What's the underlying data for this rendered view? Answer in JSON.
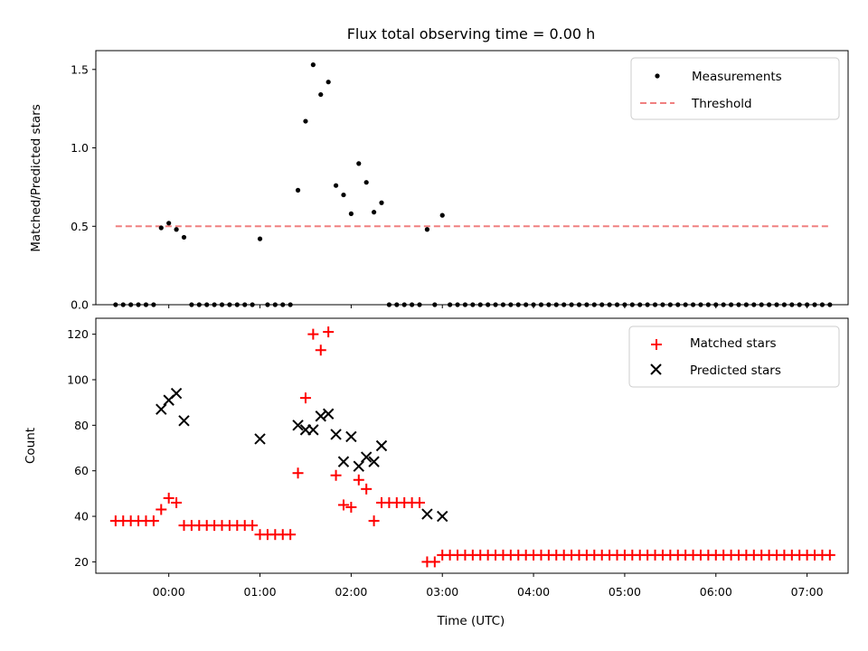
{
  "chart_data": [
    {
      "type": "scatter",
      "title": "Flux total observing time = 0.00 h",
      "xlabel": "",
      "ylabel": "Matched/Predicted stars",
      "ylim": [
        0,
        1.62
      ],
      "yticks": [
        "0.0",
        "0.5",
        "1.0",
        "1.5"
      ],
      "ytick_values": [
        0,
        0.5,
        1.0,
        1.5
      ],
      "legend": {
        "position": "top-right",
        "entries": [
          "Measurements",
          "Threshold"
        ]
      },
      "threshold": {
        "name": "Threshold",
        "y": 0.5,
        "x_start": "-00:35",
        "x_end": "07:15",
        "color": "#f08080"
      },
      "series": [
        {
          "name": "Measurements",
          "color": "#000000",
          "points": [
            [
              "-00:35",
              0
            ],
            [
              "-00:30",
              0
            ],
            [
              "-00:25",
              0
            ],
            [
              "-00:20",
              0
            ],
            [
              "-00:15",
              0
            ],
            [
              "-00:10",
              0
            ],
            [
              "-00:05",
              0.49
            ],
            [
              "00:00",
              0.52
            ],
            [
              "00:05",
              0.48
            ],
            [
              "00:10",
              0.43
            ],
            [
              "00:15",
              0
            ],
            [
              "00:20",
              0
            ],
            [
              "00:25",
              0
            ],
            [
              "00:30",
              0
            ],
            [
              "00:35",
              0
            ],
            [
              "00:40",
              0
            ],
            [
              "00:45",
              0
            ],
            [
              "00:50",
              0
            ],
            [
              "00:55",
              0
            ],
            [
              "01:00",
              0.42
            ],
            [
              "01:05",
              0
            ],
            [
              "01:10",
              0
            ],
            [
              "01:15",
              0
            ],
            [
              "01:20",
              0
            ],
            [
              "01:25",
              0.73
            ],
            [
              "01:30",
              1.17
            ],
            [
              "01:35",
              1.53
            ],
            [
              "01:40",
              1.34
            ],
            [
              "01:45",
              1.42
            ],
            [
              "01:50",
              0.76
            ],
            [
              "01:55",
              0.7
            ],
            [
              "02:00",
              0.58
            ],
            [
              "02:05",
              0.9
            ],
            [
              "02:10",
              0.78
            ],
            [
              "02:15",
              0.59
            ],
            [
              "02:20",
              0.65
            ],
            [
              "02:25",
              0
            ],
            [
              "02:30",
              0
            ],
            [
              "02:35",
              0
            ],
            [
              "02:40",
              0
            ],
            [
              "02:45",
              0
            ],
            [
              "02:50",
              0.48
            ],
            [
              "02:55",
              0
            ],
            [
              "03:00",
              0.57
            ],
            [
              "03:05",
              0
            ],
            [
              "03:10",
              0
            ],
            [
              "03:15",
              0
            ],
            [
              "03:20",
              0
            ],
            [
              "03:25",
              0
            ],
            [
              "03:30",
              0
            ],
            [
              "03:35",
              0
            ],
            [
              "03:40",
              0
            ],
            [
              "03:45",
              0
            ],
            [
              "03:50",
              0
            ],
            [
              "03:55",
              0
            ],
            [
              "04:00",
              0
            ],
            [
              "04:05",
              0
            ],
            [
              "04:10",
              0
            ],
            [
              "04:15",
              0
            ],
            [
              "04:20",
              0
            ],
            [
              "04:25",
              0
            ],
            [
              "04:30",
              0
            ],
            [
              "04:35",
              0
            ],
            [
              "04:40",
              0
            ],
            [
              "04:45",
              0
            ],
            [
              "04:50",
              0
            ],
            [
              "04:55",
              0
            ],
            [
              "05:00",
              0
            ],
            [
              "05:05",
              0
            ],
            [
              "05:10",
              0
            ],
            [
              "05:15",
              0
            ],
            [
              "05:20",
              0
            ],
            [
              "05:25",
              0
            ],
            [
              "05:30",
              0
            ],
            [
              "05:35",
              0
            ],
            [
              "05:40",
              0
            ],
            [
              "05:45",
              0
            ],
            [
              "05:50",
              0
            ],
            [
              "05:55",
              0
            ],
            [
              "06:00",
              0
            ],
            [
              "06:05",
              0
            ],
            [
              "06:10",
              0
            ],
            [
              "06:15",
              0
            ],
            [
              "06:20",
              0
            ],
            [
              "06:25",
              0
            ],
            [
              "06:30",
              0
            ],
            [
              "06:35",
              0
            ],
            [
              "06:40",
              0
            ],
            [
              "06:45",
              0
            ],
            [
              "06:50",
              0
            ],
            [
              "06:55",
              0
            ],
            [
              "07:00",
              0
            ],
            [
              "07:05",
              0
            ],
            [
              "07:10",
              0
            ],
            [
              "07:15",
              0
            ]
          ]
        }
      ]
    },
    {
      "type": "scatter",
      "title": "",
      "xlabel": "Time (UTC)",
      "ylabel": "Count",
      "ylim": [
        15,
        127
      ],
      "yticks": [
        "20",
        "40",
        "60",
        "80",
        "100",
        "120"
      ],
      "ytick_values": [
        20,
        40,
        60,
        80,
        100,
        120
      ],
      "xlim": [
        "-00:48",
        "07:27"
      ],
      "xticks": [
        "00:00",
        "01:00",
        "02:00",
        "03:00",
        "04:00",
        "05:00",
        "06:00",
        "07:00"
      ],
      "legend": {
        "position": "top-right",
        "entries": [
          "Matched stars",
          "Predicted stars"
        ]
      },
      "series": [
        {
          "name": "Matched stars",
          "color": "#ff0000",
          "marker": "plus",
          "points": [
            [
              "-00:35",
              38
            ],
            [
              "-00:30",
              38
            ],
            [
              "-00:25",
              38
            ],
            [
              "-00:20",
              38
            ],
            [
              "-00:15",
              38
            ],
            [
              "-00:10",
              38
            ],
            [
              "-00:05",
              43
            ],
            [
              "00:00",
              48
            ],
            [
              "00:05",
              46
            ],
            [
              "00:10",
              36
            ],
            [
              "00:15",
              36
            ],
            [
              "00:20",
              36
            ],
            [
              "00:25",
              36
            ],
            [
              "00:30",
              36
            ],
            [
              "00:35",
              36
            ],
            [
              "00:40",
              36
            ],
            [
              "00:45",
              36
            ],
            [
              "00:50",
              36
            ],
            [
              "00:55",
              36
            ],
            [
              "01:00",
              32
            ],
            [
              "01:05",
              32
            ],
            [
              "01:10",
              32
            ],
            [
              "01:15",
              32
            ],
            [
              "01:20",
              32
            ],
            [
              "01:25",
              59
            ],
            [
              "01:30",
              92
            ],
            [
              "01:35",
              120
            ],
            [
              "01:40",
              113
            ],
            [
              "01:45",
              121
            ],
            [
              "01:50",
              58
            ],
            [
              "01:55",
              45
            ],
            [
              "02:00",
              44
            ],
            [
              "02:05",
              56
            ],
            [
              "02:10",
              52
            ],
            [
              "02:15",
              38
            ],
            [
              "02:20",
              46
            ],
            [
              "02:25",
              46
            ],
            [
              "02:30",
              46
            ],
            [
              "02:35",
              46
            ],
            [
              "02:40",
              46
            ],
            [
              "02:45",
              46
            ],
            [
              "02:50",
              20
            ],
            [
              "02:55",
              20
            ],
            [
              "03:00",
              23
            ],
            [
              "03:05",
              23
            ],
            [
              "03:10",
              23
            ],
            [
              "03:15",
              23
            ],
            [
              "03:20",
              23
            ],
            [
              "03:25",
              23
            ],
            [
              "03:30",
              23
            ],
            [
              "03:35",
              23
            ],
            [
              "03:40",
              23
            ],
            [
              "03:45",
              23
            ],
            [
              "03:50",
              23
            ],
            [
              "03:55",
              23
            ],
            [
              "04:00",
              23
            ],
            [
              "04:05",
              23
            ],
            [
              "04:10",
              23
            ],
            [
              "04:15",
              23
            ],
            [
              "04:20",
              23
            ],
            [
              "04:25",
              23
            ],
            [
              "04:30",
              23
            ],
            [
              "04:35",
              23
            ],
            [
              "04:40",
              23
            ],
            [
              "04:45",
              23
            ],
            [
              "04:50",
              23
            ],
            [
              "04:55",
              23
            ],
            [
              "05:00",
              23
            ],
            [
              "05:05",
              23
            ],
            [
              "05:10",
              23
            ],
            [
              "05:15",
              23
            ],
            [
              "05:20",
              23
            ],
            [
              "05:25",
              23
            ],
            [
              "05:30",
              23
            ],
            [
              "05:35",
              23
            ],
            [
              "05:40",
              23
            ],
            [
              "05:45",
              23
            ],
            [
              "05:50",
              23
            ],
            [
              "05:55",
              23
            ],
            [
              "06:00",
              23
            ],
            [
              "06:05",
              23
            ],
            [
              "06:10",
              23
            ],
            [
              "06:15",
              23
            ],
            [
              "06:20",
              23
            ],
            [
              "06:25",
              23
            ],
            [
              "06:30",
              23
            ],
            [
              "06:35",
              23
            ],
            [
              "06:40",
              23
            ],
            [
              "06:45",
              23
            ],
            [
              "06:50",
              23
            ],
            [
              "06:55",
              23
            ],
            [
              "07:00",
              23
            ],
            [
              "07:05",
              23
            ],
            [
              "07:10",
              23
            ],
            [
              "07:15",
              23
            ]
          ]
        },
        {
          "name": "Predicted stars",
          "color": "#000000",
          "marker": "x",
          "points": [
            [
              "-00:05",
              87
            ],
            [
              "00:00",
              91
            ],
            [
              "00:05",
              94
            ],
            [
              "00:10",
              82
            ],
            [
              "01:00",
              74
            ],
            [
              "01:25",
              80
            ],
            [
              "01:30",
              78
            ],
            [
              "01:35",
              78
            ],
            [
              "01:40",
              84
            ],
            [
              "01:45",
              85
            ],
            [
              "01:50",
              76
            ],
            [
              "01:55",
              64
            ],
            [
              "02:00",
              75
            ],
            [
              "02:05",
              62
            ],
            [
              "02:10",
              66
            ],
            [
              "02:15",
              64
            ],
            [
              "02:20",
              71
            ],
            [
              "02:50",
              41
            ],
            [
              "03:00",
              40
            ]
          ]
        }
      ]
    }
  ]
}
